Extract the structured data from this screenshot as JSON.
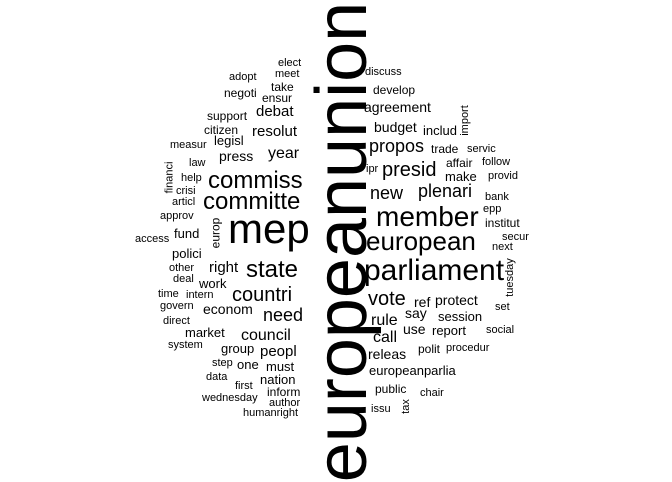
{
  "words": [
    {
      "id": "europeanunion",
      "text": "europeanunion",
      "vertical": true
    },
    {
      "id": "mep",
      "text": "mep"
    },
    {
      "id": "parliament",
      "text": "parliament"
    },
    {
      "id": "member",
      "text": "member"
    },
    {
      "id": "european",
      "text": "european"
    },
    {
      "id": "commiss",
      "text": "commiss"
    },
    {
      "id": "committe",
      "text": "committe"
    },
    {
      "id": "state",
      "text": "state"
    },
    {
      "id": "countri",
      "text": "countri"
    },
    {
      "id": "vote",
      "text": "vote"
    },
    {
      "id": "presid",
      "text": "presid"
    },
    {
      "id": "need",
      "text": "need"
    },
    {
      "id": "new",
      "text": "new"
    },
    {
      "id": "plenari",
      "text": "plenari"
    },
    {
      "id": "propos",
      "text": "propos"
    },
    {
      "id": "year",
      "text": "year"
    },
    {
      "id": "council",
      "text": "council"
    },
    {
      "id": "right",
      "text": "right"
    },
    {
      "id": "resolut",
      "text": "resolut"
    },
    {
      "id": "rule",
      "text": "rule"
    },
    {
      "id": "call",
      "text": "call"
    },
    {
      "id": "peopl",
      "text": "peopl"
    },
    {
      "id": "economi",
      "text": "econom"
    },
    {
      "id": "debat",
      "text": "debat"
    },
    {
      "id": "press",
      "text": "press"
    },
    {
      "id": "agreement",
      "text": "agreement"
    },
    {
      "id": "budget",
      "text": "budget"
    },
    {
      "id": "protect",
      "text": "protect"
    },
    {
      "id": "releas",
      "text": "releas"
    },
    {
      "id": "europeanparlia",
      "text": "europeanparlia"
    },
    {
      "id": "ref",
      "text": "ref"
    },
    {
      "id": "say",
      "text": "say"
    },
    {
      "id": "session",
      "text": "session"
    },
    {
      "id": "use",
      "text": "use"
    },
    {
      "id": "report",
      "text": "report"
    },
    {
      "id": "make",
      "text": "make"
    },
    {
      "id": "market",
      "text": "market"
    },
    {
      "id": "must",
      "text": "must"
    },
    {
      "id": "nation",
      "text": "nation"
    },
    {
      "id": "work",
      "text": "work"
    },
    {
      "id": "fund",
      "text": "fund"
    },
    {
      "id": "polici",
      "text": "polici"
    },
    {
      "id": "group",
      "text": "group"
    },
    {
      "id": "one",
      "text": "one"
    },
    {
      "id": "inform",
      "text": "inform"
    },
    {
      "id": "public",
      "text": "public"
    },
    {
      "id": "develop",
      "text": "develop"
    },
    {
      "id": "legisl",
      "text": "legisl"
    },
    {
      "id": "includ",
      "text": "includ"
    },
    {
      "id": "trade",
      "text": "trade"
    },
    {
      "id": "affair",
      "text": "affair"
    },
    {
      "id": "institut",
      "text": "institut"
    },
    {
      "id": "polit",
      "text": "polit"
    },
    {
      "id": "ensur",
      "text": "ensur"
    },
    {
      "id": "support",
      "text": "support"
    },
    {
      "id": "citizen",
      "text": "citizen"
    },
    {
      "id": "take",
      "text": "take"
    },
    {
      "id": "negoti",
      "text": "negoti"
    },
    {
      "id": "adopt",
      "text": "adopt"
    },
    {
      "id": "meet",
      "text": "meet"
    },
    {
      "id": "elect",
      "text": "elect"
    },
    {
      "id": "discuss",
      "text": "discuss"
    },
    {
      "id": "import",
      "text": "import",
      "vertical": true
    },
    {
      "id": "servic",
      "text": "servic"
    },
    {
      "id": "follow",
      "text": "follow"
    },
    {
      "id": "provid",
      "text": "provid"
    },
    {
      "id": "ipr",
      "text": "ipr"
    },
    {
      "id": "bank",
      "text": "bank"
    },
    {
      "id": "epp",
      "text": "epp"
    },
    {
      "id": "secur",
      "text": "secur"
    },
    {
      "id": "next",
      "text": "next"
    },
    {
      "id": "tuesday",
      "text": "tuesday",
      "vertical": true
    },
    {
      "id": "set",
      "text": "set"
    },
    {
      "id": "social",
      "text": "social"
    },
    {
      "id": "procedur",
      "text": "procedur"
    },
    {
      "id": "chair",
      "text": "chair"
    },
    {
      "id": "tax",
      "text": "tax",
      "vertical": true
    },
    {
      "id": "issu",
      "text": "issu"
    },
    {
      "id": "author",
      "text": "author"
    },
    {
      "id": "humanright",
      "text": "humanright"
    },
    {
      "id": "wednesday",
      "text": "wednesday"
    },
    {
      "id": "first",
      "text": "first"
    },
    {
      "id": "data",
      "text": "data"
    },
    {
      "id": "step",
      "text": "step"
    },
    {
      "id": "system",
      "text": "system"
    },
    {
      "id": "direct",
      "text": "direct"
    },
    {
      "id": "govern",
      "text": "govern"
    },
    {
      "id": "time",
      "text": "time"
    },
    {
      "id": "intern",
      "text": "intern"
    },
    {
      "id": "deal",
      "text": "deal"
    },
    {
      "id": "other",
      "text": "other"
    },
    {
      "id": "access",
      "text": "access"
    },
    {
      "id": "approv",
      "text": "approv"
    },
    {
      "id": "europ",
      "text": "europ",
      "vertical": true
    },
    {
      "id": "articl",
      "text": "articl"
    },
    {
      "id": "crisi",
      "text": "crisi"
    },
    {
      "id": "help",
      "text": "help"
    },
    {
      "id": "financi",
      "text": "financi",
      "vertical": true
    },
    {
      "id": "law",
      "text": "law"
    },
    {
      "id": "measur",
      "text": "measur"
    }
  ]
}
